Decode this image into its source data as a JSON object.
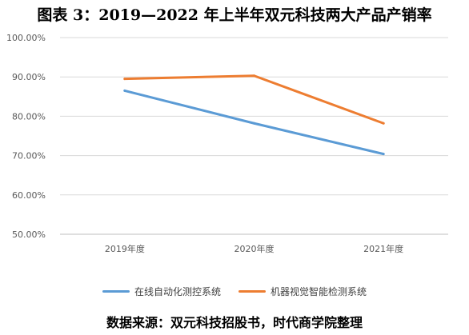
{
  "title": "图表 3：2019—2022 年上半年双元科技两大产品产销率",
  "source": "数据来源：双元科技招股书，时代商学院整理",
  "chart_data": {
    "type": "line",
    "categories": [
      "2019年度",
      "2020年度",
      "2021年度"
    ],
    "y_ticks": [
      "100.00%",
      "90.00%",
      "80.00%",
      "70.00%",
      "60.00%",
      "50.00%"
    ],
    "ylim": [
      50,
      100
    ],
    "grid": true,
    "legend_position": "bottom",
    "series": [
      {
        "name": "在线自动化测控系统",
        "color": "#5B9BD5",
        "values": [
          86.5,
          78.2,
          70.4
        ]
      },
      {
        "name": "机器视觉智能检测系统",
        "color": "#ED7D31",
        "values": [
          89.5,
          90.3,
          78.2
        ]
      }
    ]
  }
}
